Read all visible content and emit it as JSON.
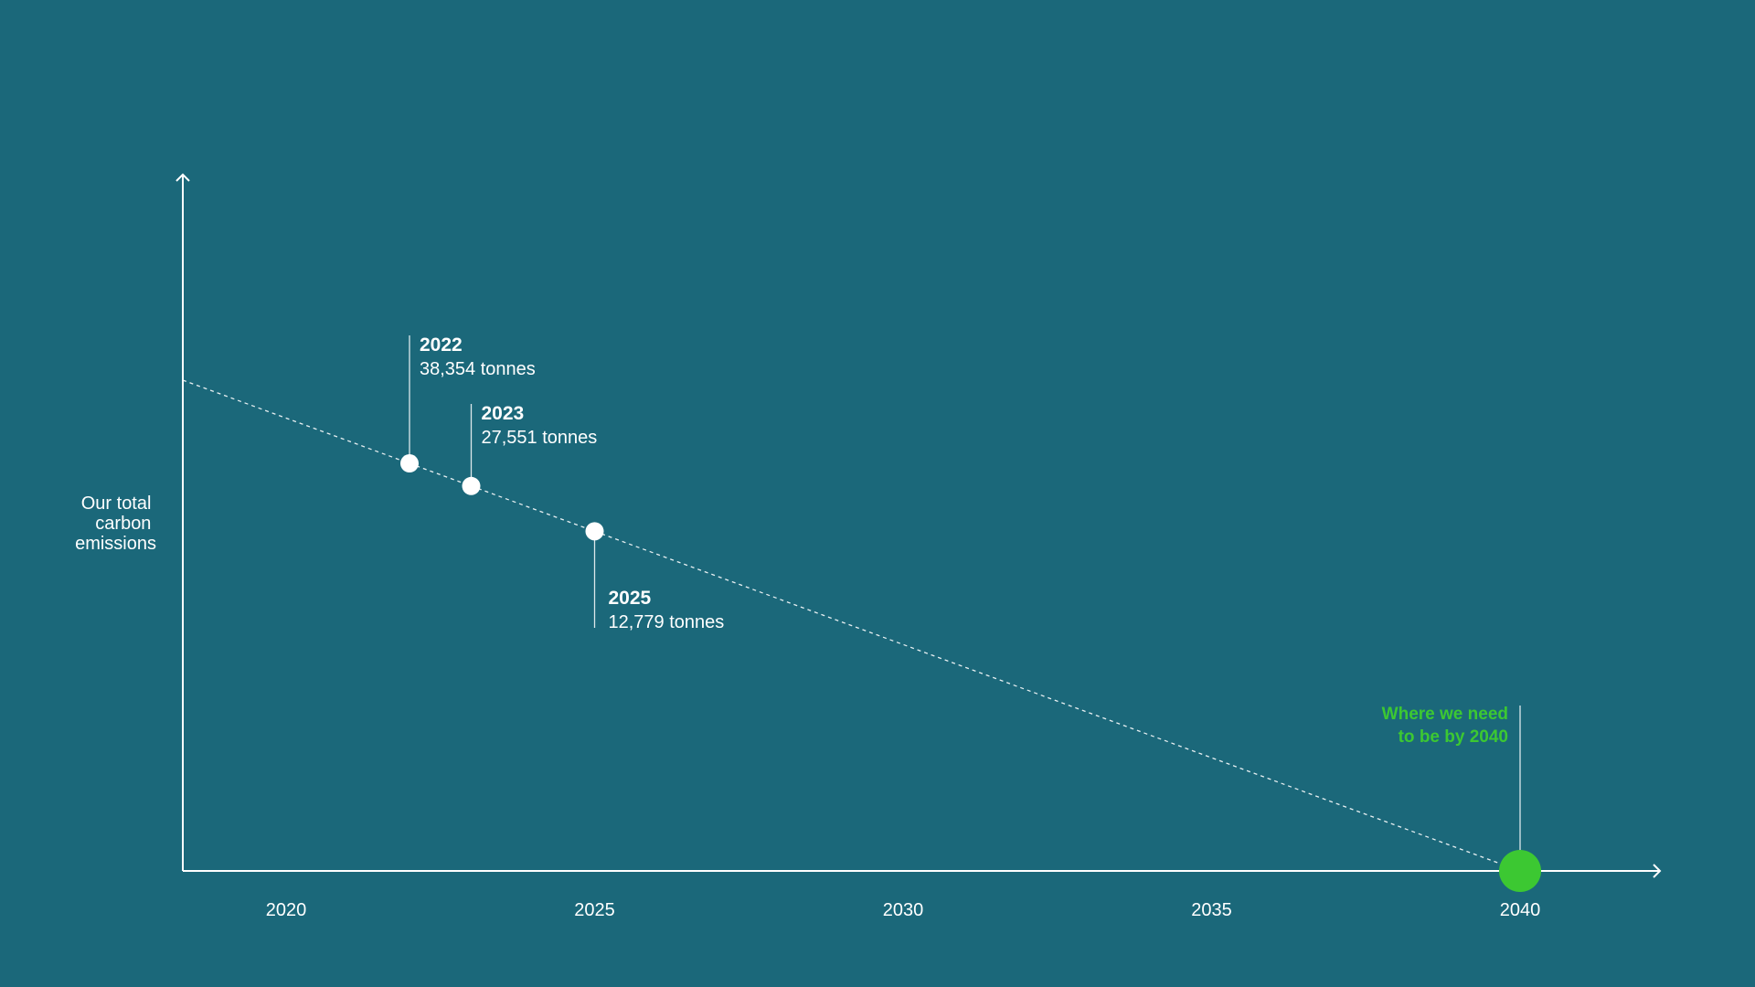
{
  "chart_data": {
    "type": "line",
    "title": "",
    "ylabel": "Our total carbon emissions",
    "ylabel_lines": [
      "Our total",
      "carbon",
      "emissions"
    ],
    "xlabel": "",
    "x_ticks": [
      "2020",
      "2025",
      "2030",
      "2035",
      "2040"
    ],
    "points": [
      {
        "year": "2022",
        "label": "38,354 tonnes",
        "value": 38354
      },
      {
        "year": "2023",
        "label": "27,551 tonnes",
        "value": 27551
      },
      {
        "year": "2025",
        "label": "12,779 tonnes",
        "value": 12779
      }
    ],
    "target": {
      "year": "2040",
      "value": 0,
      "label_lines": [
        "Where we need",
        "to be by 2040"
      ]
    },
    "trend_line": "dashed",
    "grid": false,
    "colors": {
      "background": "#1b687a",
      "axis": "#ffffff",
      "points": "#ffffff",
      "target": "#3cc832"
    }
  }
}
